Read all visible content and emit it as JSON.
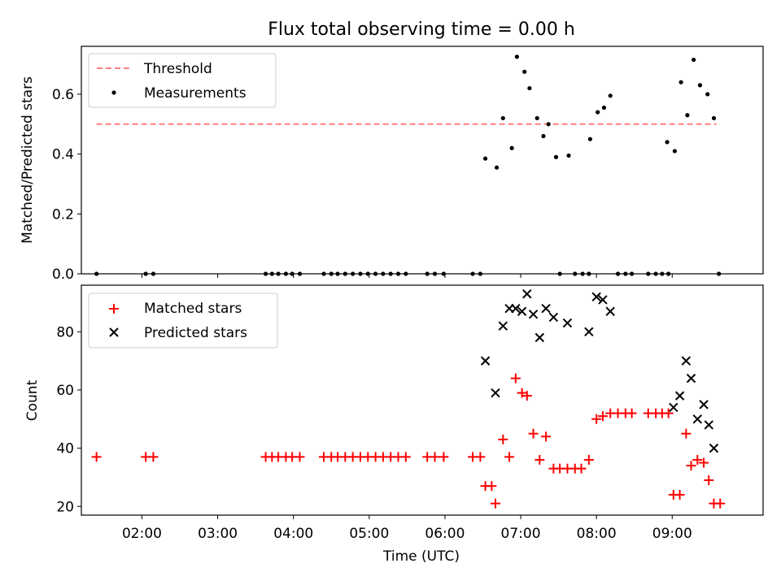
{
  "title": "Flux total observing time = 0.00 h",
  "chart_data": [
    {
      "type": "scatter",
      "ylabel": "Matched/Predicted stars",
      "xlabel": "",
      "xlim": [
        "01:12",
        "10:12"
      ],
      "ylim": [
        0,
        0.76
      ],
      "yticks": [
        "0.0",
        "0.2",
        "0.4",
        "0.6"
      ],
      "ytick_values": [
        0,
        0.2,
        0.4,
        0.6
      ],
      "legend": {
        "position": "upper left",
        "entries": [
          "Threshold",
          "Measurements"
        ]
      },
      "threshold": {
        "name": "Threshold",
        "x": [
          "01:24",
          "09:35"
        ],
        "y": 0.5,
        "color": "#ff7f7f",
        "style": "dashed"
      },
      "series": [
        {
          "name": "Measurements",
          "color": "#000000",
          "marker": "dot",
          "points": [
            [
              "01:24",
              0
            ],
            [
              "02:03",
              0
            ],
            [
              "02:09",
              0
            ],
            [
              "03:38",
              0
            ],
            [
              "03:43",
              0
            ],
            [
              "03:48",
              0
            ],
            [
              "03:54",
              0
            ],
            [
              "03:59",
              0
            ],
            [
              "04:05",
              0
            ],
            [
              "04:24",
              0
            ],
            [
              "04:30",
              0
            ],
            [
              "04:35",
              0
            ],
            [
              "04:41",
              0
            ],
            [
              "04:47",
              0
            ],
            [
              "04:53",
              0
            ],
            [
              "04:59",
              0
            ],
            [
              "05:05",
              0
            ],
            [
              "05:11",
              0
            ],
            [
              "05:17",
              0
            ],
            [
              "05:23",
              0
            ],
            [
              "05:29",
              0
            ],
            [
              "05:46",
              0
            ],
            [
              "05:52",
              0
            ],
            [
              "05:59",
              0
            ],
            [
              "06:22",
              0
            ],
            [
              "06:28",
              0
            ],
            [
              "06:32",
              0.385
            ],
            [
              "06:41",
              0.355
            ],
            [
              "06:46",
              0.52
            ],
            [
              "06:53",
              0.42
            ],
            [
              "06:57",
              0.725
            ],
            [
              "07:03",
              0.675
            ],
            [
              "07:07",
              0.62
            ],
            [
              "07:13",
              0.52
            ],
            [
              "07:18",
              0.46
            ],
            [
              "07:22",
              0.5
            ],
            [
              "07:28",
              0.39
            ],
            [
              "07:31",
              0
            ],
            [
              "07:38",
              0.395
            ],
            [
              "07:43",
              0
            ],
            [
              "07:49",
              0
            ],
            [
              "07:54",
              0
            ],
            [
              "07:55",
              0.45
            ],
            [
              "08:01",
              0.54
            ],
            [
              "08:06",
              0.555
            ],
            [
              "08:11",
              0.595
            ],
            [
              "08:17",
              0
            ],
            [
              "08:23",
              0
            ],
            [
              "08:28",
              0
            ],
            [
              "08:41",
              0
            ],
            [
              "08:47",
              0
            ],
            [
              "08:52",
              0
            ],
            [
              "08:57",
              0
            ],
            [
              "08:56",
              0.44
            ],
            [
              "09:02",
              0.41
            ],
            [
              "09:07",
              0.64
            ],
            [
              "09:12",
              0.53
            ],
            [
              "09:17",
              0.715
            ],
            [
              "09:22",
              0.63
            ],
            [
              "09:28",
              0.6
            ],
            [
              "09:33",
              0.52
            ],
            [
              "09:37",
              0
            ]
          ]
        }
      ]
    },
    {
      "type": "scatter",
      "ylabel": "Count",
      "xlabel": "Time (UTC)",
      "xlim": [
        "01:12",
        "10:12"
      ],
      "ylim": [
        17,
        96
      ],
      "yticks": [
        "20",
        "40",
        "60",
        "80"
      ],
      "ytick_values": [
        20,
        40,
        60,
        80
      ],
      "xticks": [
        "02:00",
        "03:00",
        "04:00",
        "05:00",
        "06:00",
        "07:00",
        "08:00",
        "09:00"
      ],
      "legend": {
        "position": "upper left",
        "entries": [
          "Matched stars",
          "Predicted stars"
        ]
      },
      "series": [
        {
          "name": "Matched stars",
          "color": "#ff0000",
          "marker": "plus",
          "points": [
            [
              "01:24",
              37
            ],
            [
              "02:03",
              37
            ],
            [
              "02:09",
              37
            ],
            [
              "03:38",
              37
            ],
            [
              "03:43",
              37
            ],
            [
              "03:48",
              37
            ],
            [
              "03:54",
              37
            ],
            [
              "03:59",
              37
            ],
            [
              "04:05",
              37
            ],
            [
              "04:24",
              37
            ],
            [
              "04:30",
              37
            ],
            [
              "04:35",
              37
            ],
            [
              "04:41",
              37
            ],
            [
              "04:47",
              37
            ],
            [
              "04:53",
              37
            ],
            [
              "04:59",
              37
            ],
            [
              "05:05",
              37
            ],
            [
              "05:11",
              37
            ],
            [
              "05:17",
              37
            ],
            [
              "05:23",
              37
            ],
            [
              "05:29",
              37
            ],
            [
              "05:46",
              37
            ],
            [
              "05:52",
              37
            ],
            [
              "05:59",
              37
            ],
            [
              "06:22",
              37
            ],
            [
              "06:28",
              37
            ],
            [
              "06:32",
              27
            ],
            [
              "06:37",
              27
            ],
            [
              "06:40",
              21
            ],
            [
              "06:46",
              43
            ],
            [
              "06:51",
              37
            ],
            [
              "06:56",
              64
            ],
            [
              "07:01",
              59
            ],
            [
              "07:05",
              58
            ],
            [
              "07:10",
              45
            ],
            [
              "07:15",
              36
            ],
            [
              "07:20",
              44
            ],
            [
              "07:26",
              33
            ],
            [
              "07:31",
              33
            ],
            [
              "07:37",
              33
            ],
            [
              "07:43",
              33
            ],
            [
              "07:48",
              33
            ],
            [
              "07:54",
              36
            ],
            [
              "08:00",
              50
            ],
            [
              "08:05",
              51
            ],
            [
              "08:11",
              52
            ],
            [
              "08:17",
              52
            ],
            [
              "08:23",
              52
            ],
            [
              "08:28",
              52
            ],
            [
              "08:41",
              52
            ],
            [
              "08:47",
              52
            ],
            [
              "08:52",
              52
            ],
            [
              "08:57",
              52
            ],
            [
              "09:01",
              24
            ],
            [
              "09:06",
              24
            ],
            [
              "09:11",
              45
            ],
            [
              "09:15",
              34
            ],
            [
              "09:20",
              36
            ],
            [
              "09:25",
              35
            ],
            [
              "09:29",
              29
            ],
            [
              "09:33",
              21
            ],
            [
              "09:38",
              21
            ]
          ]
        },
        {
          "name": "Predicted stars",
          "color": "#000000",
          "marker": "x",
          "points": [
            [
              "06:32",
              70
            ],
            [
              "06:40",
              59
            ],
            [
              "06:46",
              82
            ],
            [
              "06:51",
              88
            ],
            [
              "06:56",
              88
            ],
            [
              "07:01",
              87
            ],
            [
              "07:05",
              93
            ],
            [
              "07:10",
              86
            ],
            [
              "07:15",
              78
            ],
            [
              "07:20",
              88
            ],
            [
              "07:26",
              85
            ],
            [
              "07:37",
              83
            ],
            [
              "07:54",
              80
            ],
            [
              "08:00",
              92
            ],
            [
              "08:05",
              91
            ],
            [
              "08:11",
              87
            ],
            [
              "09:01",
              54
            ],
            [
              "09:06",
              58
            ],
            [
              "09:11",
              70
            ],
            [
              "09:15",
              64
            ],
            [
              "09:20",
              50
            ],
            [
              "09:25",
              55
            ],
            [
              "09:29",
              48
            ],
            [
              "09:33",
              40
            ]
          ]
        }
      ]
    }
  ]
}
